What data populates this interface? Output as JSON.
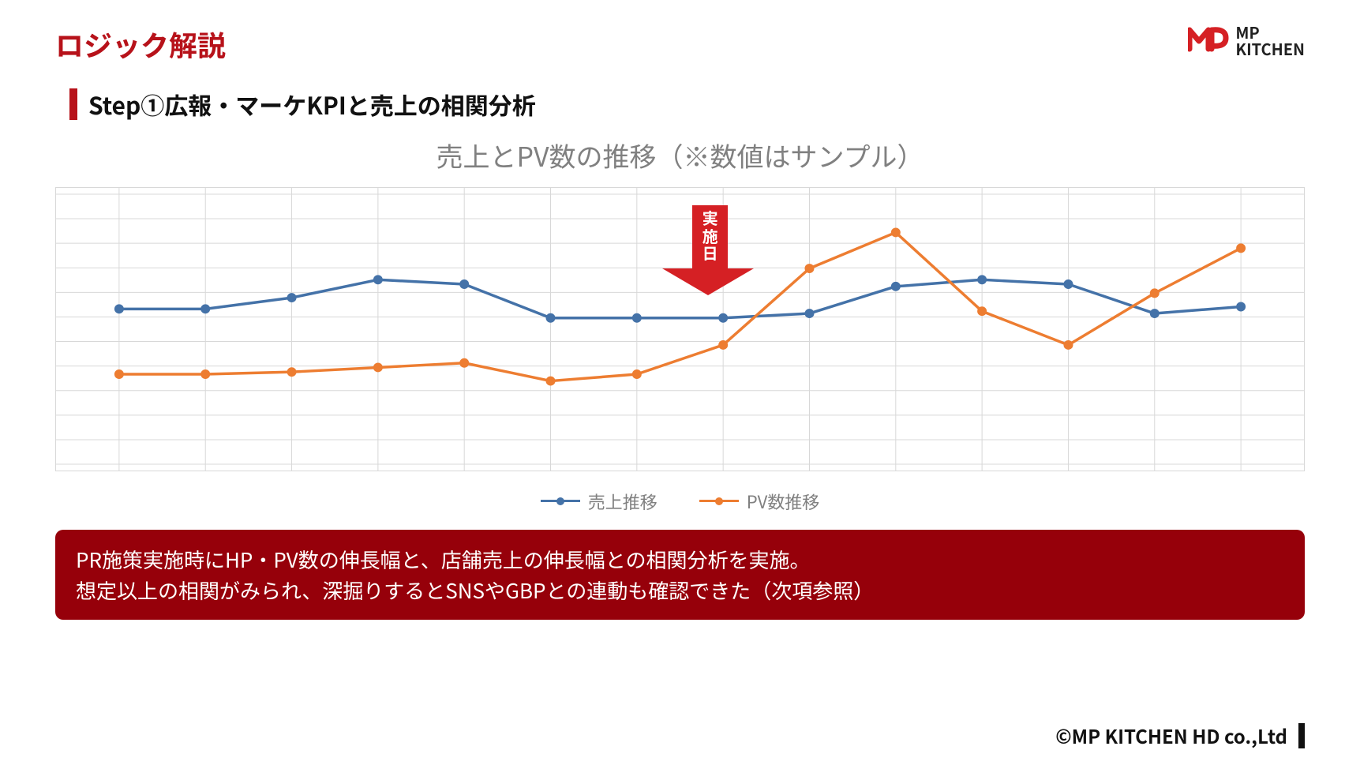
{
  "title": "ロジック解説",
  "subtitle": "Step①広報・マーケKPIと売上の相関分析",
  "logo": {
    "line1": "MP",
    "line2": "KITCHEN",
    "accent_color": "#d52024",
    "text_color": "#222222"
  },
  "chart": {
    "type": "line",
    "title": "売上とPV数の推移（※数値はサンプル）",
    "title_fontsize": 34,
    "title_color": "#808080",
    "background_color": "#ffffff",
    "grid_color": "#d8d8d8",
    "border_color": "#d8d8d8",
    "ylim": [
      0,
      12
    ],
    "y_gridlines": 11,
    "x_points": 14,
    "marker_radius": 6,
    "line_width": 3.5,
    "label_fontsize": 22,
    "series": [
      {
        "name": "売上推移",
        "color": "#4472a8",
        "marker": "circle",
        "values": [
          6.9,
          6.9,
          7.4,
          8.2,
          8.0,
          6.5,
          6.5,
          6.5,
          6.7,
          7.9,
          8.2,
          8.0,
          6.7,
          7.0
        ]
      },
      {
        "name": "PV数推移",
        "color": "#ed7d31",
        "marker": "circle",
        "values": [
          4.0,
          4.0,
          4.1,
          4.3,
          4.5,
          3.7,
          4.0,
          5.3,
          8.7,
          10.3,
          6.8,
          5.3,
          7.6,
          9.6
        ]
      }
    ],
    "event_marker": {
      "label": "実施日",
      "x_index": 7,
      "color": "#d52024",
      "text_color": "#ffffff"
    },
    "legend_items": [
      {
        "label": "売上推移",
        "color": "#4472a8"
      },
      {
        "label": "PV数推移",
        "color": "#ed7d31"
      }
    ]
  },
  "note": {
    "line1": "PR施策実施時にHP・PV数の伸長幅と、店舗売上の伸長幅との相関分析を実施。",
    "line2": "想定以上の相関がみられ、深掘りするとSNSやGBPとの連動も確認できた（次項参照）",
    "background_color": "#96000a",
    "text_color": "#ffffff"
  },
  "footer": "©MP KITCHEN HD co.,Ltd"
}
